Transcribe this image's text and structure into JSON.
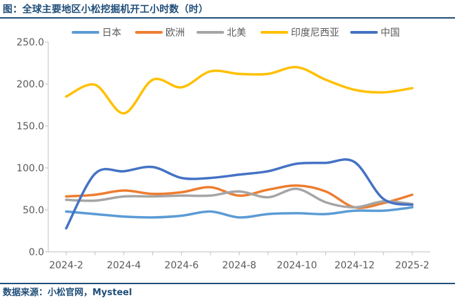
{
  "title": "图：全球主要地区小松挖掘机开工小时数（时）",
  "source": "数据来源：小松官网，Mysteel",
  "chart_data": {
    "type": "line",
    "x": [
      "2024-2",
      "2024-3",
      "2024-4",
      "2024-5",
      "2024-6",
      "2024-7",
      "2024-8",
      "2024-9",
      "2024-10",
      "2024-11",
      "2024-12",
      "2025-1",
      "2025-2"
    ],
    "x_tick_labels": [
      "2024-2",
      "2024-4",
      "2024-6",
      "2024-8",
      "2024-10",
      "2024-12",
      "2025-2"
    ],
    "ylim": [
      0,
      250
    ],
    "y_ticks": [
      "0.0",
      "50.0",
      "100.0",
      "150.0",
      "200.0",
      "250.0"
    ],
    "grid": false,
    "legend_position": "top",
    "series": [
      {
        "name": "日本",
        "color": "#5b9bd5",
        "values": [
          48,
          45,
          42,
          41,
          43,
          48,
          41,
          45,
          46,
          45,
          49,
          49,
          53
        ]
      },
      {
        "name": "欧洲",
        "color": "#ed7d31",
        "values": [
          66,
          68,
          73,
          69,
          71,
          77,
          67,
          74,
          79,
          72,
          53,
          58,
          68
        ]
      },
      {
        "name": "北美",
        "color": "#a5a5a5",
        "values": [
          62,
          61,
          66,
          66,
          67,
          67,
          72,
          65,
          75,
          59,
          53,
          60,
          57
        ]
      },
      {
        "name": "印度尼西亚",
        "color": "#ffc000",
        "values": [
          185,
          199,
          165,
          205,
          196,
          215,
          212,
          212,
          220,
          205,
          193,
          190,
          195
        ]
      },
      {
        "name": "中国",
        "color": "#4472c4",
        "values": [
          28,
          93,
          96,
          101,
          88,
          88,
          92,
          96,
          105,
          106,
          107,
          63,
          56
        ]
      }
    ]
  }
}
